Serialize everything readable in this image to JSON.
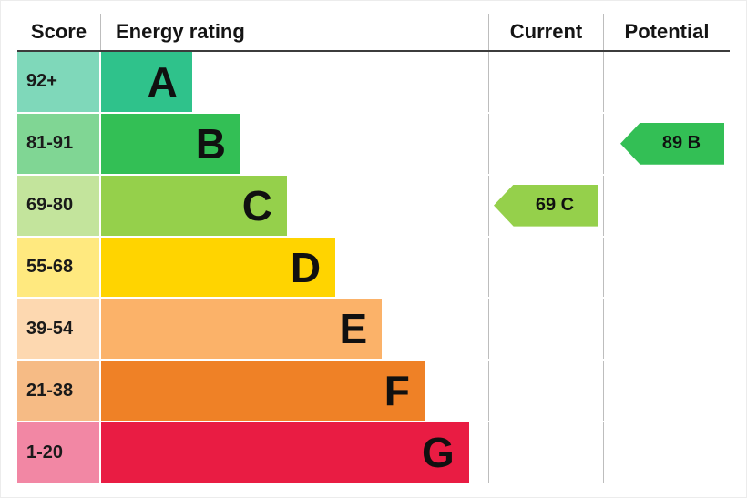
{
  "header": {
    "score": "Score",
    "energy_rating": "Energy rating",
    "current": "Current",
    "potential": "Potential"
  },
  "chart_data": {
    "type": "bar",
    "title": "Energy rating",
    "categories": [
      "A",
      "B",
      "C",
      "D",
      "E",
      "F",
      "G"
    ],
    "bands": [
      {
        "letter": "A",
        "score": "92+",
        "band_color": "#2fc28b",
        "score_color": "#7fd8ba",
        "width_pct": 23.5
      },
      {
        "letter": "B",
        "score": "81-91",
        "band_color": "#33bf55",
        "score_color": "#80d694",
        "width_pct": 36
      },
      {
        "letter": "C",
        "score": "69-80",
        "band_color": "#95d04b",
        "score_color": "#c3e49c",
        "width_pct": 48
      },
      {
        "letter": "D",
        "score": "55-68",
        "band_color": "#ffd400",
        "score_color": "#ffe97f",
        "width_pct": 60.5
      },
      {
        "letter": "E",
        "score": "39-54",
        "band_color": "#fbb269",
        "score_color": "#fdd8b0",
        "width_pct": 72.5
      },
      {
        "letter": "F",
        "score": "21-38",
        "band_color": "#ef8126",
        "score_color": "#f6bb85",
        "width_pct": 83.5
      },
      {
        "letter": "G",
        "score": "1-20",
        "band_color": "#e91c43",
        "score_color": "#f287a4",
        "width_pct": 95
      }
    ],
    "current": {
      "label": "69 C",
      "value": 69,
      "band": "C",
      "color": "#95d04b"
    },
    "potential": {
      "label": "89 B",
      "value": 89,
      "band": "B",
      "color": "#33bf55"
    },
    "xlabel": "",
    "ylabel": "",
    "grid": false,
    "legend_position": "none"
  }
}
